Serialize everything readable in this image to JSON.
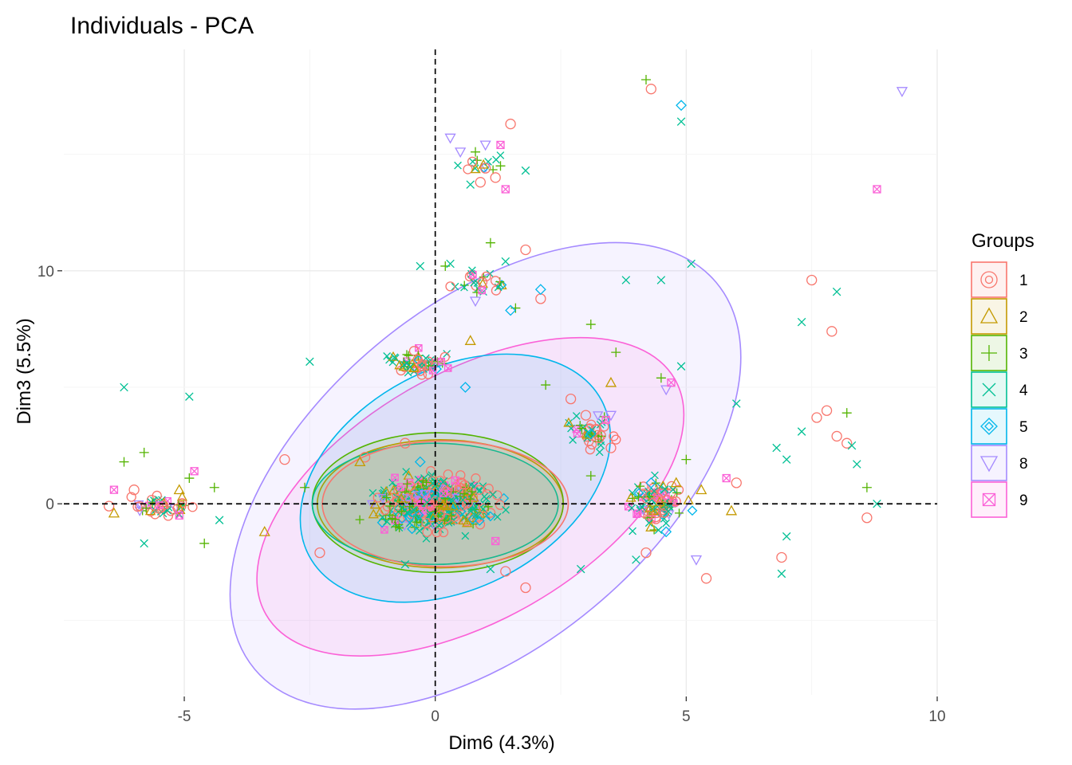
{
  "chart_data": {
    "type": "scatter",
    "title": "Individuals - PCA",
    "xlabel": "Dim6 (4.3%)",
    "ylabel": "Dim3 (5.5%)",
    "xlim": [
      -7.4,
      10.0
    ],
    "ylim": [
      -8.2,
      19.5
    ],
    "x_ticks": [
      -5,
      0,
      5,
      10
    ],
    "x_tick_labels": [
      "-5",
      "0",
      "5",
      "10"
    ],
    "y_ticks": [
      0,
      10
    ],
    "y_tick_labels": [
      "0",
      "10"
    ],
    "grid": true,
    "reference_lines": {
      "x": 0,
      "y": 0,
      "style": "dashed"
    },
    "legend": {
      "title": "Groups",
      "placement": "right",
      "entries": [
        "1",
        "2",
        "3",
        "4",
        "5",
        "8",
        "9"
      ]
    },
    "series": [
      {
        "name": "1",
        "color": "#F8766D",
        "shape": "circle-dot",
        "ellipse": {
          "cx": 0.2,
          "cy": 0.0,
          "rx": 2.45,
          "ry": 2.7,
          "angle": 0
        },
        "points": [
          [
            1.5,
            16.3
          ],
          [
            1.2,
            14.0
          ],
          [
            0.9,
            13.8
          ],
          [
            1.0,
            14.4
          ],
          [
            1.8,
            10.9
          ],
          [
            2.1,
            8.8
          ],
          [
            4.3,
            17.8
          ],
          [
            7.5,
            9.6
          ],
          [
            7.9,
            7.4
          ],
          [
            7.8,
            4.0
          ],
          [
            7.6,
            3.7
          ],
          [
            8.2,
            2.6
          ],
          [
            8.0,
            2.9
          ],
          [
            8.6,
            -0.6
          ],
          [
            6.9,
            -2.3
          ],
          [
            -6.5,
            -0.1
          ],
          [
            -6.0,
            0.6
          ],
          [
            -5.5,
            -0.2
          ],
          [
            -3.0,
            1.9
          ],
          [
            -2.3,
            -2.1
          ],
          [
            -1.4,
            2.0
          ],
          [
            -0.6,
            2.6
          ],
          [
            1.4,
            -2.9
          ],
          [
            1.8,
            -3.6
          ],
          [
            2.7,
            4.5
          ],
          [
            3.0,
            3.8
          ],
          [
            3.5,
            2.4
          ],
          [
            4.2,
            -2.1
          ],
          [
            5.4,
            -3.2
          ],
          [
            6.0,
            0.9
          ]
        ]
      },
      {
        "name": "2",
        "color": "#C49A00",
        "shape": "triangle",
        "ellipse": {
          "cx": 0.1,
          "cy": 0.0,
          "rx": 2.45,
          "ry": 2.75,
          "angle": 0
        },
        "points": [
          [
            -6.4,
            -0.4
          ],
          [
            -5.1,
            0.6
          ],
          [
            -3.4,
            -1.2
          ],
          [
            -1.5,
            1.8
          ],
          [
            0.7,
            7.0
          ],
          [
            3.5,
            5.2
          ],
          [
            4.8,
            0.9
          ],
          [
            5.3,
            0.6
          ],
          [
            5.9,
            -0.3
          ],
          [
            4.3,
            -1.0
          ]
        ]
      },
      {
        "name": "3",
        "color": "#53B400",
        "shape": "plus",
        "ellipse": {
          "cx": 0.05,
          "cy": 0.05,
          "rx": 2.5,
          "ry": 3.0,
          "angle": 0
        },
        "points": [
          [
            4.2,
            18.2
          ],
          [
            0.8,
            15.1
          ],
          [
            1.3,
            14.5
          ],
          [
            0.2,
            10.2
          ],
          [
            1.1,
            11.2
          ],
          [
            1.6,
            8.4
          ],
          [
            3.1,
            7.7
          ],
          [
            3.6,
            6.5
          ],
          [
            2.2,
            5.1
          ],
          [
            4.5,
            5.4
          ],
          [
            -6.2,
            1.8
          ],
          [
            -5.8,
            2.2
          ],
          [
            -4.9,
            1.1
          ],
          [
            -4.4,
            0.7
          ],
          [
            -4.6,
            -1.7
          ],
          [
            -2.6,
            0.7
          ],
          [
            8.2,
            3.9
          ],
          [
            8.6,
            0.7
          ],
          [
            5.0,
            1.9
          ],
          [
            3.1,
            1.2
          ]
        ]
      },
      {
        "name": "4",
        "color": "#00C094",
        "shape": "x",
        "ellipse": {
          "cx": 0.0,
          "cy": 0.0,
          "rx": 2.45,
          "ry": 2.6,
          "angle": 0
        },
        "points": [
          [
            4.9,
            16.4
          ],
          [
            1.8,
            14.3
          ],
          [
            0.7,
            13.7
          ],
          [
            0.3,
            10.3
          ],
          [
            -0.3,
            10.2
          ],
          [
            1.4,
            10.4
          ],
          [
            3.8,
            9.6
          ],
          [
            4.5,
            9.6
          ],
          [
            5.1,
            10.3
          ],
          [
            8.0,
            9.1
          ],
          [
            7.3,
            7.8
          ],
          [
            4.9,
            5.9
          ],
          [
            6.0,
            4.3
          ],
          [
            -6.2,
            5.0
          ],
          [
            -4.9,
            4.6
          ],
          [
            -2.5,
            6.1
          ],
          [
            -5.8,
            -1.7
          ],
          [
            -4.3,
            -0.7
          ],
          [
            6.8,
            2.4
          ],
          [
            7.0,
            1.9
          ],
          [
            7.3,
            3.1
          ],
          [
            8.3,
            2.5
          ],
          [
            8.4,
            1.7
          ],
          [
            8.8,
            0.0
          ],
          [
            7.0,
            -1.4
          ],
          [
            6.9,
            -3.0
          ],
          [
            4.0,
            -2.4
          ],
          [
            1.1,
            -2.8
          ],
          [
            2.9,
            -2.8
          ],
          [
            -0.6,
            -2.6
          ]
        ]
      },
      {
        "name": "5",
        "color": "#00B6EB",
        "shape": "diamond",
        "ellipse": {
          "cx": 0.4,
          "cy": 1.1,
          "rx": 3.3,
          "ry": 4.7,
          "angle": -28
        },
        "points": [
          [
            4.9,
            17.1
          ],
          [
            2.1,
            9.2
          ],
          [
            1.5,
            8.3
          ],
          [
            0.6,
            5.0
          ],
          [
            3.1,
            3.0
          ],
          [
            4.3,
            0.9
          ],
          [
            4.6,
            -1.2
          ],
          [
            -0.3,
            1.8
          ]
        ]
      },
      {
        "name": "8",
        "color": "#A58AFF",
        "shape": "triangle-down",
        "ellipse": {
          "cx": 1.0,
          "cy": 1.2,
          "rx": 6.0,
          "ry": 7.3,
          "angle": -40
        },
        "points": [
          [
            9.3,
            17.7
          ],
          [
            0.3,
            15.7
          ],
          [
            0.5,
            15.1
          ],
          [
            1.0,
            15.4
          ],
          [
            0.8,
            8.7
          ],
          [
            4.6,
            4.9
          ],
          [
            5.2,
            -2.4
          ],
          [
            3.5,
            3.8
          ],
          [
            -0.2,
            0.4
          ]
        ]
      },
      {
        "name": "9",
        "color": "#FB61D7",
        "shape": "square-x",
        "ellipse": {
          "cx": 0.7,
          "cy": 0.3,
          "rx": 4.7,
          "ry": 5.3,
          "angle": -30
        },
        "points": [
          [
            8.8,
            13.5
          ],
          [
            1.3,
            15.4
          ],
          [
            1.4,
            13.5
          ],
          [
            4.7,
            5.2
          ],
          [
            3.4,
            3.6
          ],
          [
            -4.8,
            1.4
          ],
          [
            -6.4,
            0.6
          ],
          [
            -5.1,
            -0.5
          ],
          [
            0.4,
            1.0
          ],
          [
            5.8,
            1.1
          ],
          [
            1.2,
            -1.6
          ]
        ]
      }
    ]
  }
}
